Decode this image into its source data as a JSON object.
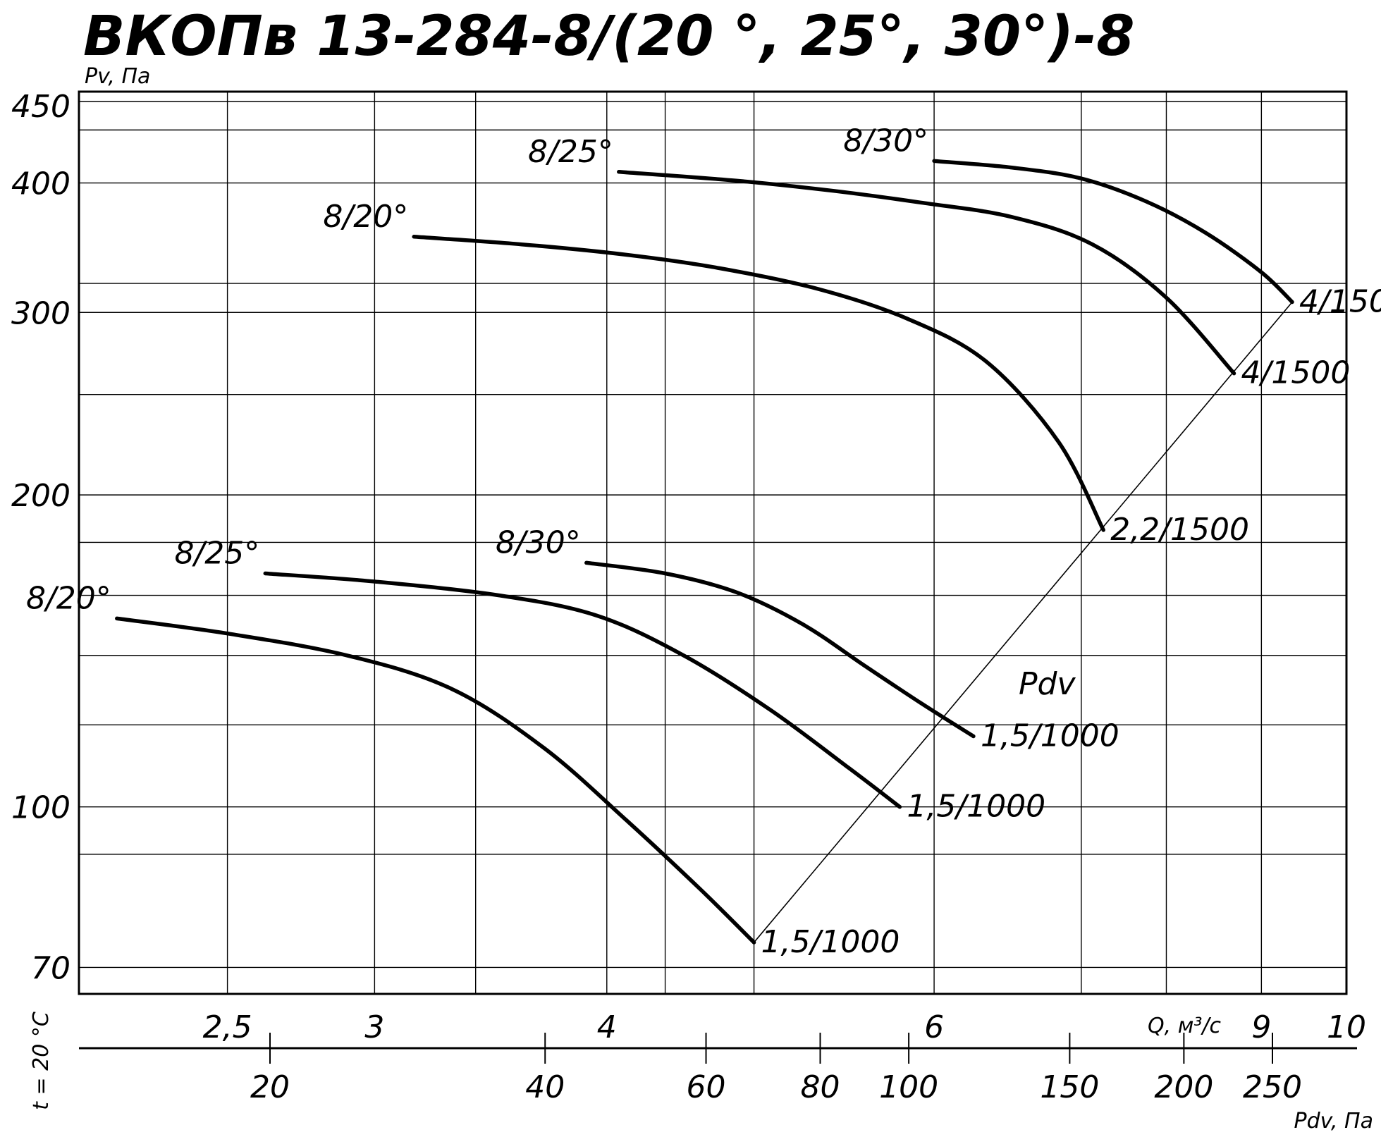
{
  "chart_data": {
    "type": "line",
    "title": "ВКОПв 13-284-8/(20 °, 25°, 30°)-8",
    "ylabel": "Pv, Па",
    "xlabel": "Q, м³/с",
    "x2label": "Pdv, Па",
    "temperature_label": "t = 20 °C",
    "pdv_line_label": "Pdv",
    "y_scale": "log",
    "x_scale": "log",
    "ylim": [
      66,
      490
    ],
    "xlim": [
      2.08,
      10.0
    ],
    "yticks": [
      70,
      100,
      200,
      300,
      400,
      450
    ],
    "ytick_labels": [
      "70",
      "100",
      "200",
      "300",
      "400",
      "450"
    ],
    "yminor": [
      90,
      120,
      140,
      160,
      180,
      250,
      320
    ],
    "xticks": [
      2.5,
      3,
      4,
      6,
      9,
      10
    ],
    "xtick_labels": [
      "2,5",
      "3",
      "4",
      "6",
      "9",
      "10"
    ],
    "xminor": [
      3.4,
      4.3,
      4.8,
      7.2,
      8.0
    ],
    "x2ticks": [
      20,
      40,
      60,
      80,
      100,
      150,
      200,
      250
    ],
    "x2tick_labels": [
      "20",
      "40",
      "60",
      "80",
      "100",
      "150",
      "200",
      "250"
    ],
    "series": [
      {
        "name": "8/20°",
        "end_label": "1,5/1000",
        "label_pos": "start",
        "x": [
          2.18,
          2.5,
          2.9,
          3.3,
          3.7,
          4.1,
          4.5,
          4.8
        ],
        "y": [
          152,
          147,
          140,
          130,
          114,
          97,
          83,
          74
        ]
      },
      {
        "name": "8/25°",
        "end_label": "1,5/1000",
        "label_pos": "start",
        "x": [
          2.62,
          3.0,
          3.5,
          3.95,
          4.4,
          4.9,
          5.4,
          5.75
        ],
        "y": [
          168,
          165,
          160,
          153,
          140,
          124,
          109,
          100
        ]
      },
      {
        "name": "8/30°",
        "end_label": "1,5/1000",
        "label_pos": "start",
        "x": [
          3.9,
          4.3,
          4.7,
          5.1,
          5.5,
          5.9,
          6.3
        ],
        "y": [
          172,
          168,
          161,
          150,
          137,
          126,
          117
        ]
      },
      {
        "name": "8/20°",
        "end_label": "2,2/1500",
        "label_pos": "start",
        "x": [
          3.15,
          3.6,
          4.1,
          4.6,
          5.2,
          5.8,
          6.4,
          7.0,
          7.4
        ],
        "y": [
          355,
          349,
          341,
          331,
          316,
          296,
          269,
          225,
          185
        ]
      },
      {
        "name": "8/25°",
        "end_label": "4/1500",
        "label_pos": "start",
        "x": [
          4.06,
          4.7,
          5.3,
          5.9,
          6.6,
          7.3,
          8.0,
          8.7
        ],
        "y": [
          410,
          402,
          393,
          383,
          371,
          349,
          310,
          262
        ]
      },
      {
        "name": "8/30°",
        "end_label": "4/1500",
        "label_pos": "start",
        "x": [
          6.0,
          6.6,
          7.2,
          7.8,
          8.4,
          9.0,
          9.35
        ],
        "y": [
          420,
          414,
          404,
          384,
          358,
          328,
          307
        ]
      }
    ],
    "pdv_line": {
      "x": [
        4.8,
        9.35
      ],
      "y": [
        74,
        307
      ]
    }
  }
}
